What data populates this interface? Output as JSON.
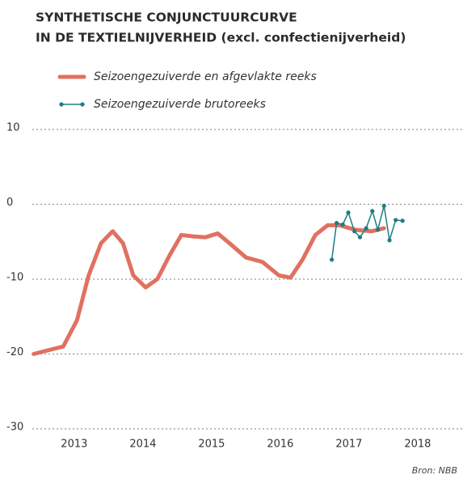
{
  "chart_data": {
    "type": "line",
    "title": [
      "SYNTHETISCHE CONJUNCTUURCURVE",
      "IN DE TEXTIELNIJVERHEID (excl. confectienijverheid)"
    ],
    "source": "Bron: NBB",
    "xlim": [
      2012.39,
      2018.66
    ],
    "xticks": [
      {
        "value": 2013,
        "label": "2013"
      },
      {
        "value": 2014,
        "label": "2014"
      },
      {
        "value": 2015,
        "label": "2015"
      },
      {
        "value": 2016,
        "label": "2016"
      },
      {
        "value": 2017,
        "label": "2017"
      },
      {
        "value": 2018,
        "label": "2018"
      }
    ],
    "ylim": [
      -30,
      10
    ],
    "yticks": [
      10,
      0,
      -10,
      -20,
      -30
    ],
    "grid": true,
    "series": [
      {
        "name": "Seizoengezuiverde en afgevlakte reeks",
        "color": "#e07162",
        "markers": false,
        "x": [
          2012.41,
          2012.62,
          2012.84,
          2013.04,
          2013.21,
          2013.39,
          2013.56,
          2013.71,
          2013.86,
          2014.04,
          2014.21,
          2014.39,
          2014.56,
          2014.74,
          2014.91,
          2015.09,
          2015.26,
          2015.5,
          2015.74,
          2015.98,
          2016.15,
          2016.33,
          2016.51,
          2016.69,
          2016.86,
          2017.09,
          2017.33,
          2017.51
        ],
        "values": [
          -20,
          -19.5,
          -19,
          -15.5,
          -9.5,
          -5.2,
          -3.6,
          -5.2,
          -9.5,
          -11.1,
          -10,
          -6.8,
          -4.1,
          -4.3,
          -4.4,
          -3.9,
          -5.2,
          -7.1,
          -7.7,
          -9.5,
          -9.8,
          -7.3,
          -4.1,
          -2.8,
          -2.8,
          -3.4,
          -3.6,
          -3.2
        ]
      },
      {
        "name": "Seizoengezuiverde brutoreeks",
        "color": "#1b7d84",
        "markers": true,
        "x": [
          2016.75,
          2016.82,
          2016.91,
          2016.99,
          2017.08,
          2017.16,
          2017.25,
          2017.34,
          2017.42,
          2017.51,
          2017.59,
          2017.68,
          2017.78
        ],
        "values": [
          -7.4,
          -2.5,
          -2.7,
          -1.1,
          -3.6,
          -4.4,
          -3.2,
          -0.9,
          -3.4,
          -0.2,
          -4.8,
          -2.1,
          -2.2
        ]
      }
    ]
  }
}
